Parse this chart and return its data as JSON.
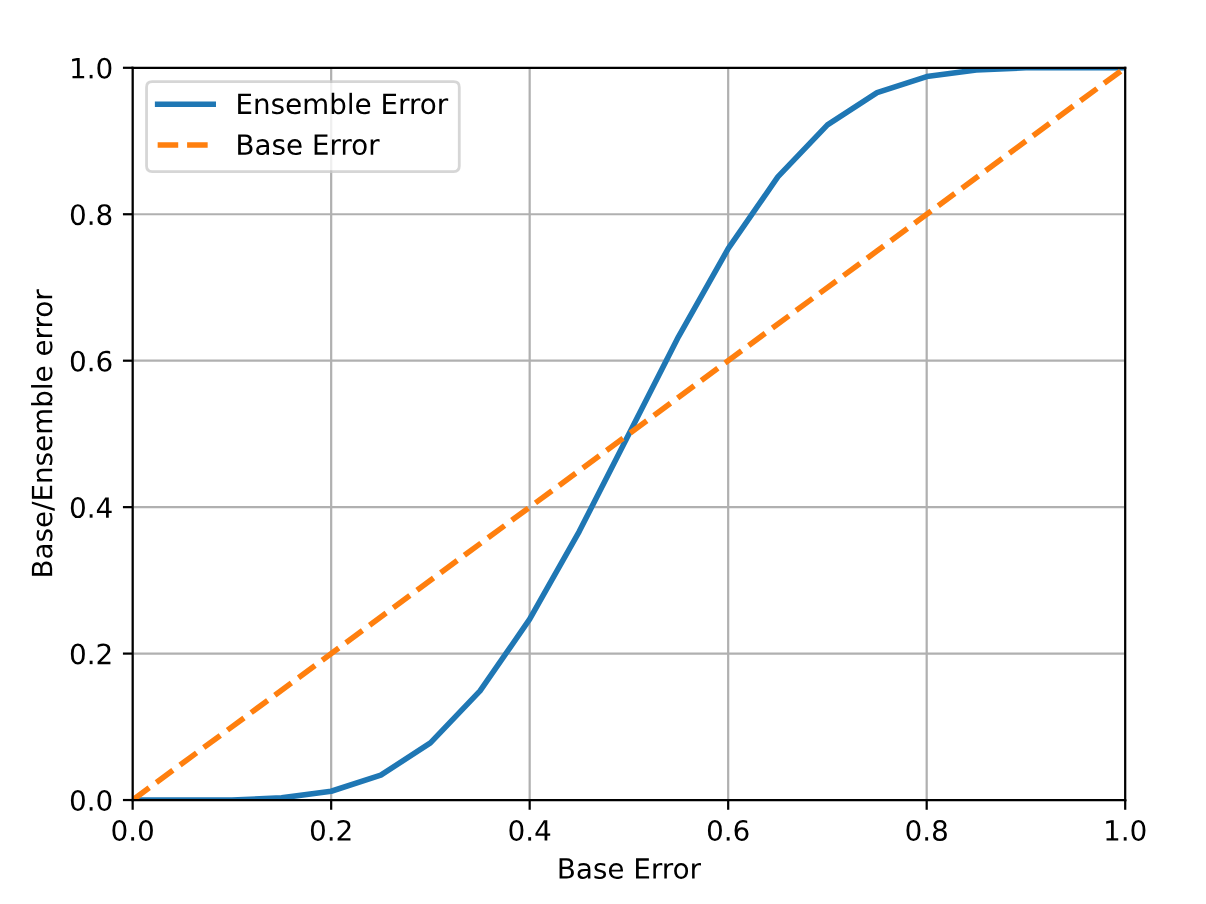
{
  "chart_data": {
    "type": "line",
    "xlabel": "Base Error",
    "ylabel": "Base/Ensemble error",
    "xlim": [
      0,
      1
    ],
    "ylim": [
      0,
      1
    ],
    "xticks": [
      {
        "value": 0,
        "label": "0.0"
      },
      {
        "value": 0.2,
        "label": "0.2"
      },
      {
        "value": 0.4,
        "label": "0.4"
      },
      {
        "value": 0.6,
        "label": "0.6"
      },
      {
        "value": 0.8,
        "label": "0.8"
      },
      {
        "value": 1,
        "label": "1.0"
      }
    ],
    "yticks": [
      {
        "value": 0,
        "label": "0.0"
      },
      {
        "value": 0.2,
        "label": "0.2"
      },
      {
        "value": 0.4,
        "label": "0.4"
      },
      {
        "value": 0.6,
        "label": "0.6"
      },
      {
        "value": 0.8,
        "label": "0.8"
      },
      {
        "value": 1,
        "label": "1.0"
      }
    ],
    "grid": true,
    "legend": "top left",
    "series": [
      {
        "name": "Ensemble Error",
        "color": "#1f77b4",
        "line_style": "solid",
        "x": [
          0,
          0.05,
          0.1,
          0.15,
          0.2,
          0.25,
          0.3,
          0.35,
          0.4,
          0.45,
          0.5,
          0.55,
          0.6,
          0.65,
          0.7,
          0.75,
          0.8,
          0.85,
          0.9,
          0.95,
          1
        ],
        "values": [
          0,
          0,
          0,
          0.003,
          0.012,
          0.034,
          0.078,
          0.149,
          0.247,
          0.367,
          0.5,
          0.633,
          0.753,
          0.851,
          0.922,
          0.966,
          0.988,
          0.997,
          1,
          1,
          1
        ]
      },
      {
        "name": "Base Error",
        "color": "#ff7f0e",
        "line_style": "dashed",
        "x": [
          0,
          1
        ],
        "values": [
          0,
          1
        ]
      }
    ]
  }
}
